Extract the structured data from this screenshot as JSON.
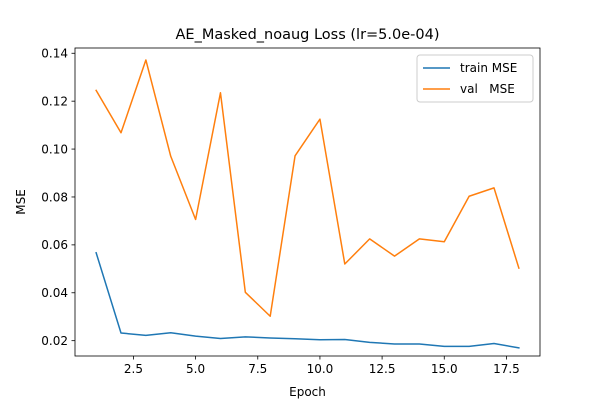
{
  "chart_data": {
    "type": "line",
    "title": "AE_Masked_noaug Loss (lr=5.0e-04)",
    "xlabel": "Epoch",
    "ylabel": "MSE",
    "xlim": [
      0.15,
      18.85
    ],
    "ylim": [
      0.0136,
      0.1422
    ],
    "xticks": [
      2.5,
      5.0,
      7.5,
      10.0,
      12.5,
      15.0,
      17.5
    ],
    "xtick_labels": [
      "2.5",
      "5.0",
      "7.5",
      "10.0",
      "12.5",
      "15.0",
      "17.5"
    ],
    "yticks": [
      0.02,
      0.04,
      0.06,
      0.08,
      0.1,
      0.12,
      0.14
    ],
    "ytick_labels": [
      "0.02",
      "0.04",
      "0.06",
      "0.08",
      "0.10",
      "0.12",
      "0.14"
    ],
    "grid": false,
    "legend_position": "top-right",
    "x": [
      1,
      2,
      3,
      4,
      5,
      6,
      7,
      8,
      9,
      10,
      11,
      12,
      13,
      14,
      15,
      16,
      17,
      18
    ],
    "series": [
      {
        "name": "train MSE",
        "color": "#1f77b4",
        "values": [
          0.0567,
          0.0232,
          0.0222,
          0.0233,
          0.0219,
          0.0209,
          0.0216,
          0.0211,
          0.0208,
          0.0204,
          0.0205,
          0.0193,
          0.0186,
          0.0186,
          0.0176,
          0.0176,
          0.0188,
          0.017
        ]
      },
      {
        "name": "val   MSE",
        "color": "#ff7f0e",
        "values": [
          0.1245,
          0.1068,
          0.1372,
          0.097,
          0.0706,
          0.1235,
          0.0402,
          0.0302,
          0.0972,
          0.1125,
          0.052,
          0.0625,
          0.0553,
          0.0625,
          0.0613,
          0.0803,
          0.0838,
          0.0503
        ]
      }
    ]
  }
}
